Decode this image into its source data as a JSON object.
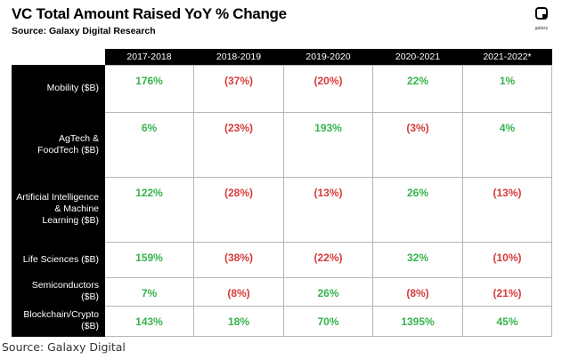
{
  "header": {
    "title": "VC Total Amount Raised YoY % Change",
    "subtitle": "Source: Galaxy Digital Research",
    "logo_text": "galaxy"
  },
  "caption": "Source: Galaxy Digital",
  "colors": {
    "positive": "#37b24d",
    "negative": "#d63b3b",
    "header_bg": "#000000",
    "grid": "#b5b5b5"
  },
  "chart_data": {
    "type": "table",
    "title": "VC Total Amount Raised YoY % Change",
    "subtitle": "Source: Galaxy Digital Research",
    "columns": [
      "2017-2018",
      "2018-2019",
      "2019-2020",
      "2020-2021",
      "2021-2022*"
    ],
    "rows": [
      {
        "label": "Mobility ($B)",
        "values": [
          "176%",
          "(37%)",
          "(20%)",
          "22%",
          "1%"
        ]
      },
      {
        "label": "AgTech & FoodTech ($B)",
        "values": [
          "6%",
          "(23%)",
          "193%",
          "(3%)",
          "4%"
        ]
      },
      {
        "label": "Artificial Intelligence & Machine Learning ($B)",
        "values": [
          "122%",
          "(28%)",
          "(13%)",
          "26%",
          "(13%)"
        ]
      },
      {
        "label": "Life Sciences ($B)",
        "values": [
          "159%",
          "(38%)",
          "(22%)",
          "32%",
          "(10%)"
        ]
      },
      {
        "label": "Semiconductors ($B)",
        "values": [
          "7%",
          "(8%)",
          "26%",
          "(8%)",
          "(21%)"
        ]
      },
      {
        "label": "Blockchain/Crypto ($B)",
        "values": [
          "143%",
          "18%",
          "70%",
          "1395%",
          "45%"
        ]
      }
    ]
  }
}
